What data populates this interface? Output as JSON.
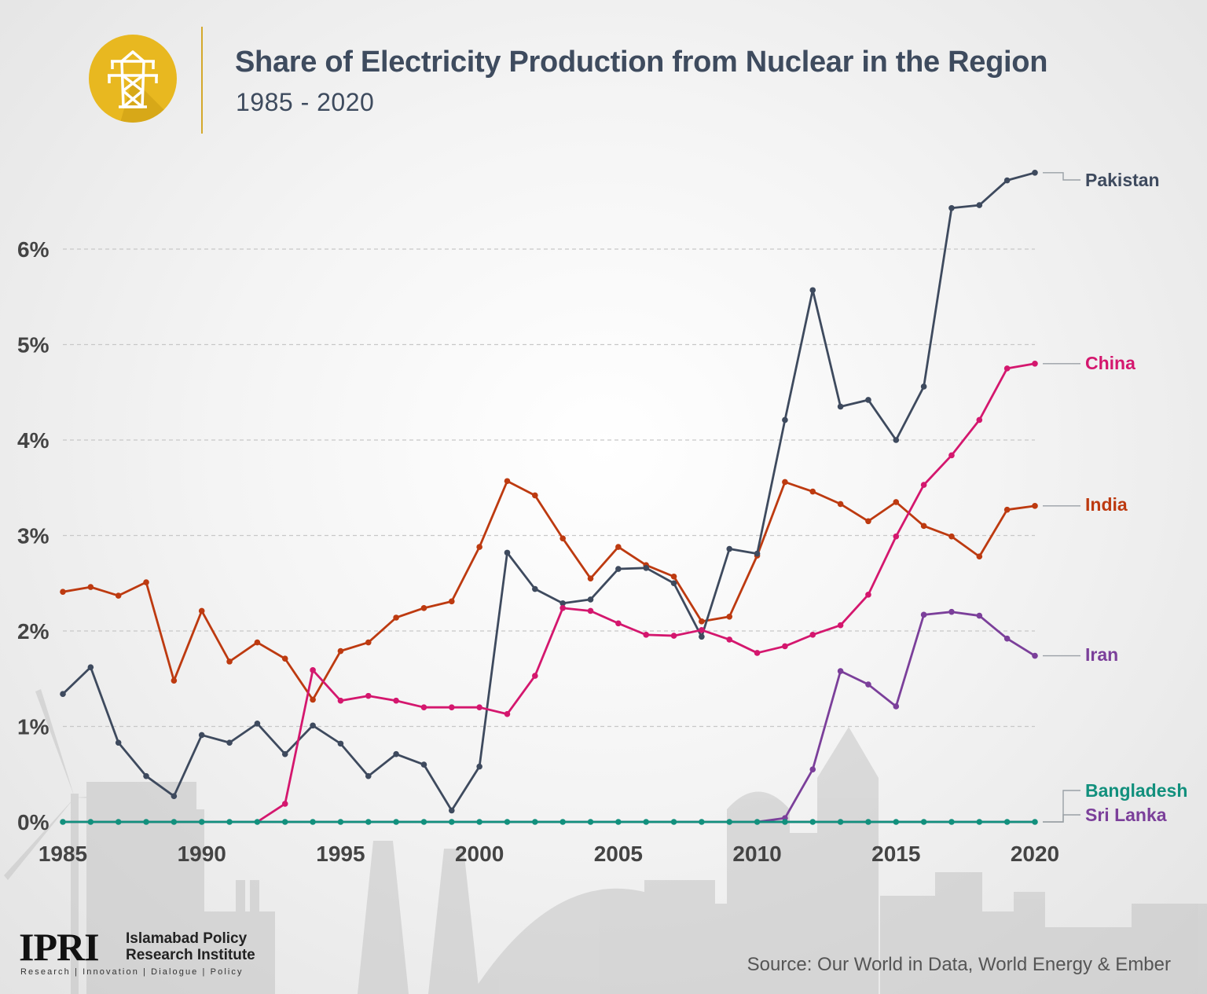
{
  "header": {
    "title": "Share of Electricity Production from Nuclear in the Region",
    "subtitle": "1985 - 2020",
    "logo_icon": "power-tower-icon",
    "accent_color": "#e8b820"
  },
  "footer": {
    "org_mark": "IPRI",
    "org_name_line1": "Islamabad Policy",
    "org_name_line2": "Research Institute",
    "tagline": "Research | Innovation | Dialogue | Policy",
    "source": "Source: Our World in Data, World Energy & Ember"
  },
  "chart_data": {
    "type": "line",
    "title": "Share of Electricity Production from Nuclear in the Region",
    "subtitle": "1985 - 2020",
    "xlabel": "",
    "ylabel": "",
    "xlim": [
      1985,
      2020
    ],
    "ylim": [
      0,
      6.8
    ],
    "x_ticks": [
      1985,
      1990,
      1995,
      2000,
      2005,
      2010,
      2015,
      2020
    ],
    "x_tick_labels": [
      "1985",
      "1990",
      "1995",
      "2000",
      "2005",
      "2010",
      "2015",
      "2020"
    ],
    "y_ticks": [
      0,
      1,
      2,
      3,
      4,
      5,
      6
    ],
    "y_tick_labels": [
      "0%",
      "1%",
      "2%",
      "3%",
      "4%",
      "5%",
      "6%"
    ],
    "grid": "horizontal dashed",
    "legend": "direct labels at right end of lines",
    "x": [
      1985,
      1986,
      1987,
      1988,
      1989,
      1990,
      1991,
      1992,
      1993,
      1994,
      1995,
      1996,
      1997,
      1998,
      1999,
      2000,
      2001,
      2002,
      2003,
      2004,
      2005,
      2006,
      2007,
      2008,
      2009,
      2010,
      2011,
      2012,
      2013,
      2014,
      2015,
      2016,
      2017,
      2018,
      2019,
      2020
    ],
    "series": [
      {
        "name": "Pakistan",
        "color": "#3e4a5e",
        "values": [
          1.34,
          1.62,
          0.83,
          0.48,
          0.27,
          0.91,
          0.83,
          1.03,
          0.71,
          1.01,
          0.82,
          0.48,
          0.71,
          0.6,
          0.12,
          0.58,
          2.82,
          2.44,
          2.29,
          2.33,
          2.65,
          2.66,
          2.5,
          1.94,
          2.86,
          2.81,
          4.21,
          5.57,
          4.35,
          4.42,
          4.0,
          4.56,
          6.43,
          6.46,
          6.72,
          6.8
        ]
      },
      {
        "name": "China",
        "color": "#d4176e",
        "values": [
          0,
          0,
          0,
          0,
          0,
          0,
          0,
          0,
          0.19,
          1.59,
          1.27,
          1.32,
          1.27,
          1.2,
          1.2,
          1.2,
          1.13,
          1.53,
          2.24,
          2.21,
          2.08,
          1.96,
          1.95,
          2.01,
          1.91,
          1.77,
          1.84,
          1.96,
          2.06,
          2.38,
          2.99,
          3.53,
          3.84,
          4.21,
          4.75,
          4.8
        ]
      },
      {
        "name": "India",
        "color": "#bd3a10",
        "values": [
          2.41,
          2.46,
          2.37,
          2.51,
          1.48,
          2.21,
          1.68,
          1.88,
          1.71,
          1.28,
          1.79,
          1.88,
          2.14,
          2.24,
          2.31,
          2.88,
          3.57,
          3.42,
          2.97,
          2.55,
          2.88,
          2.69,
          2.57,
          2.1,
          2.15,
          2.79,
          3.56,
          3.46,
          3.33,
          3.15,
          3.35,
          3.1,
          2.99,
          2.78,
          3.27,
          3.31
        ]
      },
      {
        "name": "Iran",
        "color": "#7b3f9a",
        "values": [
          0,
          0,
          0,
          0,
          0,
          0,
          0,
          0,
          0,
          0,
          0,
          0,
          0,
          0,
          0,
          0,
          0,
          0,
          0,
          0,
          0,
          0,
          0,
          0,
          0,
          0,
          0.04,
          0.55,
          1.58,
          1.44,
          1.21,
          2.17,
          2.2,
          2.16,
          1.92,
          1.74
        ]
      },
      {
        "name": "Sri Lanka",
        "color": "#7b3f9a",
        "values": [
          0,
          0,
          0,
          0,
          0,
          0,
          0,
          0,
          0,
          0,
          0,
          0,
          0,
          0,
          0,
          0,
          0,
          0,
          0,
          0,
          0,
          0,
          0,
          0,
          0,
          0,
          0,
          0,
          0,
          0,
          0,
          0,
          0,
          0,
          0,
          0
        ]
      },
      {
        "name": "Bangladesh",
        "color": "#12907d",
        "values": [
          0,
          0,
          0,
          0,
          0,
          0,
          0,
          0,
          0,
          0,
          0,
          0,
          0,
          0,
          0,
          0,
          0,
          0,
          0,
          0,
          0,
          0,
          0,
          0,
          0,
          0,
          0,
          0,
          0,
          0,
          0,
          0,
          0,
          0,
          0,
          0
        ]
      }
    ]
  }
}
